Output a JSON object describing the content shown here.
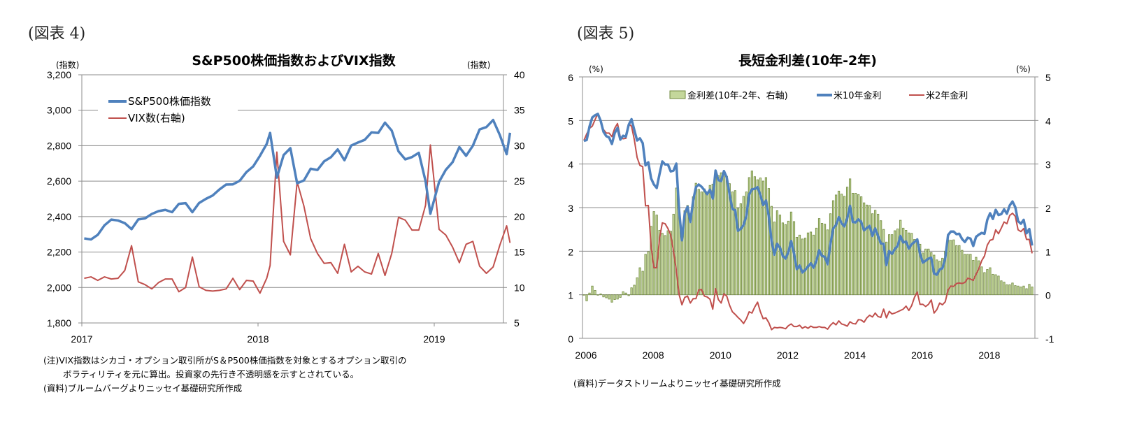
{
  "chart_data": [
    {
      "type": "line",
      "figure_label": "(図表 4)",
      "title": "S&P500株価指数およびVIX指数",
      "ylabel_left": "(指数)",
      "ylabel_right": "(指数)",
      "ylim_left": [
        1800,
        3200
      ],
      "ylim_right": [
        5,
        40
      ],
      "yticks_left": [
        "3,200",
        "3,000",
        "2,800",
        "2,600",
        "2,400",
        "2,200",
        "2,000",
        "1,800"
      ],
      "yticks_right": [
        "40",
        "35",
        "30",
        "25",
        "20",
        "15",
        "10",
        "5"
      ],
      "xticks": [
        "2017",
        "2018",
        "2019"
      ],
      "grid": true,
      "legend_position": "top-left",
      "legend": [
        "S&P500株価指数",
        "VIX数(右軸)"
      ],
      "colors": {
        "sp500": "#4f81bd",
        "vix": "#c0504d"
      },
      "x": [
        "2017-01-06",
        "2017-01-20",
        "2017-02-03",
        "2017-02-17",
        "2017-03-03",
        "2017-03-17",
        "2017-03-31",
        "2017-04-14",
        "2017-04-28",
        "2017-05-12",
        "2017-05-26",
        "2017-06-09",
        "2017-06-23",
        "2017-07-07",
        "2017-07-21",
        "2017-08-04",
        "2017-08-18",
        "2017-09-01",
        "2017-09-15",
        "2017-09-29",
        "2017-10-13",
        "2017-10-27",
        "2017-11-10",
        "2017-11-24",
        "2017-12-08",
        "2017-12-22",
        "2018-01-05",
        "2018-01-19",
        "2018-01-26",
        "2018-02-09",
        "2018-02-23",
        "2018-03-09",
        "2018-03-23",
        "2018-04-06",
        "2018-04-20",
        "2018-05-04",
        "2018-05-18",
        "2018-06-01",
        "2018-06-15",
        "2018-06-29",
        "2018-07-13",
        "2018-07-27",
        "2018-08-10",
        "2018-08-24",
        "2018-09-07",
        "2018-09-21",
        "2018-10-05",
        "2018-10-19",
        "2018-11-02",
        "2018-11-16",
        "2018-11-30",
        "2018-12-14",
        "2018-12-24",
        "2019-01-11",
        "2019-01-25",
        "2019-02-08",
        "2019-02-22",
        "2019-03-08",
        "2019-03-22",
        "2019-04-05",
        "2019-04-19",
        "2019-05-03",
        "2019-05-17",
        "2019-05-31",
        "2019-06-07"
      ],
      "series": [
        {
          "name": "S&P500株価指数",
          "axis": "left",
          "values": [
            2277,
            2271,
            2297,
            2351,
            2383,
            2378,
            2363,
            2329,
            2384,
            2390,
            2415,
            2431,
            2438,
            2425,
            2472,
            2476,
            2425,
            2477,
            2500,
            2519,
            2553,
            2581,
            2582,
            2602,
            2651,
            2683,
            2743,
            2810,
            2872,
            2620,
            2747,
            2786,
            2588,
            2604,
            2670,
            2663,
            2712,
            2735,
            2779,
            2718,
            2801,
            2818,
            2833,
            2875,
            2872,
            2930,
            2885,
            2768,
            2723,
            2736,
            2760,
            2600,
            2416,
            2596,
            2664,
            2707,
            2792,
            2743,
            2800,
            2892,
            2905,
            2945,
            2859,
            2752,
            2873
          ]
        },
        {
          "name": "VIX数(右軸)",
          "axis": "right",
          "values": [
            11.3,
            11.5,
            11.0,
            11.5,
            11.2,
            11.3,
            12.4,
            15.9,
            10.8,
            10.4,
            9.8,
            10.7,
            11.2,
            11.2,
            9.4,
            10.0,
            14.3,
            10.1,
            9.6,
            9.5,
            9.6,
            9.8,
            11.3,
            9.7,
            11.0,
            10.9,
            9.2,
            11.3,
            13.1,
            29.1,
            16.5,
            14.6,
            24.9,
            21.5,
            16.9,
            14.8,
            13.4,
            13.5,
            12.0,
            16.1,
            12.2,
            13.0,
            12.2,
            11.9,
            14.8,
            11.7,
            14.8,
            19.9,
            19.5,
            18.1,
            18.1,
            21.6,
            30.1,
            18.2,
            17.4,
            15.7,
            13.5,
            16.1,
            16.5,
            13.0,
            12.0,
            12.9,
            16.0,
            18.7,
            16.3
          ]
        }
      ],
      "notes": [
        "(注)VIX指数はシカゴ・オプション取引所がS＆P500株価指数を対象とするオプション取引の",
        "ボラティリティを元に算出。投資家の先行き不透明感を示すとされている。",
        "(資料)ブルームバーグよりニッセイ基礎研究所作成"
      ]
    },
    {
      "type": "bar+line",
      "figure_label": "(図表 5)",
      "title": "長短金利差(10年-2年)",
      "ylabel_left": "(%)",
      "ylabel_right": "(%)",
      "ylim_left": [
        0,
        6
      ],
      "ylim_right": [
        -1,
        5
      ],
      "yticks_left": [
        "6",
        "5",
        "4",
        "3",
        "2",
        "1",
        "0"
      ],
      "yticks_right": [
        "5",
        "4",
        "3",
        "2",
        "1",
        "0",
        "-1"
      ],
      "xticks": [
        "2006",
        "2008",
        "2010",
        "2012",
        "2014",
        "2016",
        "2018"
      ],
      "x_start": "2006-01",
      "x_end": "2019-05",
      "frequency": "monthly",
      "grid": true,
      "legend_position": "top",
      "legend": [
        "金利差(10年-2年、右軸)",
        "米10年金利",
        "米2年金利"
      ],
      "colors": {
        "spread": "#9bbb59",
        "spread_edge": "#71893f",
        "y10": "#4f81bd",
        "y2": "#c0504d"
      },
      "series": [
        {
          "name": "金利差(10年-2年、右軸)",
          "axis": "right",
          "type": "bar",
          "values": [
            -0.01,
            -0.14,
            0.04,
            0.2,
            0.1,
            -0.01,
            0.02,
            -0.05,
            -0.07,
            -0.1,
            -0.17,
            -0.11,
            -0.1,
            -0.06,
            0.07,
            0.04,
            -0.02,
            0.16,
            0.22,
            0.39,
            0.62,
            0.54,
            0.93,
            0.99,
            1.57,
            1.91,
            1.83,
            1.48,
            1.41,
            1.36,
            1.47,
            1.46,
            1.85,
            2.45,
            1.93,
            1.48,
            1.93,
            2.05,
            1.86,
            2.25,
            2.56,
            2.42,
            2.36,
            2.43,
            2.36,
            2.51,
            2.54,
            2.71,
            2.74,
            2.8,
            2.82,
            2.72,
            2.55,
            2.36,
            2.39,
            1.99,
            2.09,
            2.26,
            2.36,
            2.69,
            2.84,
            2.71,
            2.64,
            2.68,
            2.61,
            2.69,
            2.44,
            2.03,
            1.67,
            1.93,
            1.83,
            1.65,
            1.61,
            1.69,
            1.9,
            1.68,
            1.32,
            1.37,
            1.28,
            1.3,
            1.42,
            1.44,
            1.37,
            1.53,
            1.75,
            1.64,
            1.62,
            1.49,
            1.86,
            2.16,
            2.29,
            2.38,
            2.31,
            2.26,
            2.47,
            2.66,
            2.33,
            2.33,
            2.3,
            2.25,
            2.11,
            2.06,
            2.05,
            1.86,
            1.94,
            1.85,
            1.7,
            1.5,
            1.21,
            1.38,
            1.38,
            1.47,
            1.51,
            1.71,
            1.53,
            1.48,
            1.42,
            1.41,
            1.27,
            1.21,
            1.16,
            0.96,
            1.05,
            1.05,
            0.97,
            0.91,
            0.8,
            0.77,
            0.84,
            1.0,
            1.26,
            1.25,
            1.26,
            1.13,
            1.13,
            1.02,
            0.93,
            0.93,
            0.93,
            0.79,
            0.86,
            0.78,
            0.64,
            0.51,
            0.58,
            0.62,
            0.47,
            0.46,
            0.43,
            0.32,
            0.29,
            0.23,
            0.23,
            0.27,
            0.21,
            0.2,
            0.18,
            0.2,
            0.14,
            0.24,
            0.18
          ]
        },
        {
          "name": "米10年金利",
          "axis": "left",
          "type": "line",
          "values": [
            4.53,
            4.55,
            4.86,
            5.07,
            5.12,
            5.15,
            4.99,
            4.74,
            4.64,
            4.61,
            4.46,
            4.71,
            4.83,
            4.56,
            4.65,
            4.63,
            4.9,
            5.03,
            4.78,
            4.54,
            4.59,
            4.48,
            3.97,
            4.04,
            3.67,
            3.53,
            3.45,
            3.77,
            4.06,
            3.99,
            3.99,
            3.83,
            3.85,
            4.01,
            2.93,
            2.25,
            2.87,
            3.02,
            2.67,
            3.16,
            3.47,
            3.53,
            3.48,
            3.4,
            3.31,
            3.41,
            3.21,
            3.85,
            3.63,
            3.61,
            3.84,
            3.69,
            3.31,
            2.97,
            2.94,
            2.47,
            2.51,
            2.6,
            2.81,
            3.3,
            3.42,
            3.43,
            3.47,
            3.29,
            3.06,
            3.16,
            2.8,
            2.23,
            1.92,
            2.17,
            2.08,
            1.89,
            1.83,
            1.98,
            2.23,
            1.95,
            1.59,
            1.67,
            1.51,
            1.57,
            1.65,
            1.72,
            1.62,
            1.78,
            2.02,
            1.89,
            1.87,
            1.7,
            2.16,
            2.52,
            2.6,
            2.78,
            2.64,
            2.57,
            2.75,
            3.04,
            2.67,
            2.66,
            2.73,
            2.67,
            2.48,
            2.53,
            2.58,
            2.35,
            2.52,
            2.35,
            2.18,
            2.17,
            1.68,
            2.0,
            1.94,
            2.05,
            2.12,
            2.35,
            2.2,
            2.22,
            2.06,
            2.16,
            2.21,
            2.27,
            1.94,
            1.74,
            1.78,
            1.83,
            1.85,
            1.49,
            1.46,
            1.58,
            1.61,
            1.84,
            2.37,
            2.45,
            2.45,
            2.39,
            2.4,
            2.28,
            2.21,
            2.31,
            2.29,
            2.12,
            2.33,
            2.38,
            2.42,
            2.4,
            2.72,
            2.87,
            2.74,
            2.95,
            2.83,
            2.85,
            2.96,
            2.86,
            3.05,
            3.14,
            3.01,
            2.69,
            2.63,
            2.72,
            2.41,
            2.51,
            2.13
          ]
        },
        {
          "name": "米2年金利",
          "axis": "left",
          "type": "line",
          "values": [
            4.54,
            4.69,
            4.82,
            4.87,
            5.02,
            5.16,
            4.97,
            4.79,
            4.71,
            4.71,
            4.63,
            4.82,
            4.93,
            4.62,
            4.58,
            4.59,
            4.92,
            4.87,
            4.56,
            4.15,
            3.97,
            3.94,
            3.04,
            3.05,
            2.1,
            1.62,
            1.62,
            2.29,
            2.65,
            2.63,
            2.52,
            2.37,
            2.0,
            1.56,
            1.0,
            0.77,
            0.94,
            0.97,
            0.81,
            0.91,
            0.91,
            1.11,
            1.12,
            0.97,
            0.95,
            0.9,
            0.67,
            1.14,
            0.89,
            0.81,
            1.02,
            0.97,
            0.76,
            0.61,
            0.55,
            0.48,
            0.42,
            0.34,
            0.45,
            0.61,
            0.58,
            0.72,
            0.83,
            0.61,
            0.45,
            0.47,
            0.36,
            0.2,
            0.25,
            0.24,
            0.25,
            0.24,
            0.22,
            0.29,
            0.33,
            0.27,
            0.27,
            0.3,
            0.23,
            0.27,
            0.23,
            0.28,
            0.25,
            0.25,
            0.27,
            0.25,
            0.25,
            0.21,
            0.3,
            0.36,
            0.31,
            0.4,
            0.33,
            0.31,
            0.28,
            0.38,
            0.34,
            0.33,
            0.43,
            0.42,
            0.37,
            0.47,
            0.53,
            0.49,
            0.58,
            0.5,
            0.48,
            0.67,
            0.47,
            0.62,
            0.56,
            0.58,
            0.61,
            0.64,
            0.67,
            0.74,
            0.64,
            0.75,
            0.94,
            1.06,
            0.78,
            0.78,
            0.73,
            0.78,
            0.88,
            0.58,
            0.66,
            0.81,
            0.77,
            0.84,
            1.11,
            1.2,
            1.19,
            1.26,
            1.27,
            1.26,
            1.28,
            1.38,
            1.36,
            1.33,
            1.47,
            1.6,
            1.78,
            1.89,
            2.14,
            2.25,
            2.27,
            2.49,
            2.4,
            2.53,
            2.67,
            2.63,
            2.82,
            2.87,
            2.8,
            2.49,
            2.45,
            2.52,
            2.27,
            2.27,
            1.95
          ]
        }
      ],
      "notes": [
        "(資料)データストリームよりニッセイ基礎研究所作成"
      ]
    }
  ]
}
